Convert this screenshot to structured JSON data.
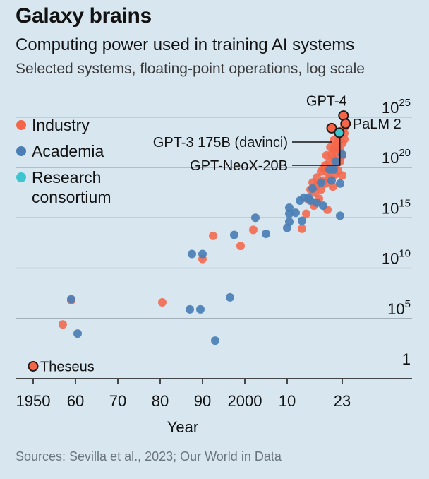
{
  "header": {
    "title": "Galaxy brains",
    "subtitle": "Computing power used in training AI systems",
    "description": "Selected systems, floating-point operations, log scale"
  },
  "footer": {
    "source": "Sources: Sevilla et al., 2023; Our World in Data"
  },
  "colors": {
    "industry": "#f4664a",
    "academia": "#4a7fb5",
    "research": "#3ec4cf",
    "outline": "#1e1e1e",
    "grid": "#9aa6b0",
    "background": "#d8e6f0"
  },
  "chart_data": {
    "type": "scatter",
    "y_scale": "log",
    "xlabel": "Year",
    "ylabel": "",
    "xlim": [
      1948,
      2031
    ],
    "ylim": [
      0,
      26.5
    ],
    "x_ticks": [
      {
        "value": 1950,
        "label": "1950"
      },
      {
        "value": 1960,
        "label": "60"
      },
      {
        "value": 1970,
        "label": "70"
      },
      {
        "value": 1980,
        "label": "80"
      },
      {
        "value": 1990,
        "label": "90"
      },
      {
        "value": 2000,
        "label": "2000"
      },
      {
        "value": 2010,
        "label": "10"
      },
      {
        "value": 2023,
        "label": "23"
      }
    ],
    "y_ticks": [
      {
        "exp": 0,
        "base": "1",
        "sup": ""
      },
      {
        "exp": 5,
        "base": "10",
        "sup": "5"
      },
      {
        "exp": 10,
        "base": "10",
        "sup": "10"
      },
      {
        "exp": 15,
        "base": "10",
        "sup": "15"
      },
      {
        "exp": 20,
        "base": "10",
        "sup": "20"
      },
      {
        "exp": 25,
        "base": "10",
        "sup": "25"
      }
    ],
    "legend": {
      "placement": "top-left",
      "entries": [
        {
          "key": "industry",
          "label_lines": [
            "Industry"
          ]
        },
        {
          "key": "academia",
          "label_lines": [
            "Academia"
          ]
        },
        {
          "key": "research",
          "label_lines": [
            "Research",
            "consortium"
          ]
        }
      ]
    },
    "series": [
      {
        "key": "industry",
        "points": [
          [
            1957,
            4.4
          ],
          [
            1959,
            6.8
          ],
          [
            1980.5,
            6.6
          ],
          [
            1990,
            10.9
          ],
          [
            1992.5,
            13.2
          ],
          [
            1999,
            12.2
          ],
          [
            2002,
            13.8
          ],
          [
            2013.5,
            13.9
          ],
          [
            2014.5,
            15.4
          ],
          [
            2015,
            16.8
          ],
          [
            2015.5,
            17.8
          ],
          [
            2016,
            18.5
          ],
          [
            2016.3,
            16.2
          ],
          [
            2016.5,
            17.5
          ],
          [
            2017,
            19.0
          ],
          [
            2017,
            18.2
          ],
          [
            2017.5,
            16.9
          ],
          [
            2018,
            19.6
          ],
          [
            2018,
            17.8
          ],
          [
            2018.5,
            18.7
          ],
          [
            2018.5,
            19.9
          ],
          [
            2019,
            20.2
          ],
          [
            2019,
            18.4
          ],
          [
            2019.3,
            21.2
          ],
          [
            2019.5,
            15.8
          ],
          [
            2019.5,
            19.5
          ],
          [
            2020,
            20.5
          ],
          [
            2020,
            18.9
          ],
          [
            2020.2,
            22.0
          ],
          [
            2020.5,
            21.3
          ],
          [
            2020.5,
            19.9
          ],
          [
            2020.8,
            18.1
          ],
          [
            2021,
            20.8
          ],
          [
            2021,
            21.8
          ],
          [
            2021,
            22.7
          ],
          [
            2021.3,
            19.3
          ],
          [
            2021.5,
            20.3
          ],
          [
            2021.5,
            21.5
          ],
          [
            2021.5,
            22.2
          ],
          [
            2022,
            22.5
          ],
          [
            2022,
            21.9
          ],
          [
            2022,
            20.9
          ],
          [
            2022,
            19.7
          ],
          [
            2022.3,
            23.0
          ],
          [
            2022.5,
            21.7
          ],
          [
            2022.5,
            20.6
          ],
          [
            2022.5,
            23.3
          ],
          [
            2023,
            22.4
          ],
          [
            2023,
            21.2
          ],
          [
            2023,
            19.2
          ],
          [
            2023.3,
            23.8
          ],
          [
            2023.5,
            23.4
          ],
          [
            2023.5,
            22.8
          ],
          [
            2023.8,
            24.1
          ]
        ]
      },
      {
        "key": "academia",
        "points": [
          [
            1959,
            6.9
          ],
          [
            1960.5,
            3.5
          ],
          [
            1987,
            5.9
          ],
          [
            1987.5,
            11.4
          ],
          [
            1989.5,
            5.9
          ],
          [
            1990,
            11.4
          ],
          [
            1993,
            2.8
          ],
          [
            1996.5,
            7.1
          ],
          [
            1997.5,
            13.3
          ],
          [
            2002.5,
            15.0
          ],
          [
            2005,
            13.4
          ],
          [
            2010,
            14.0
          ],
          [
            2010.5,
            14.6
          ],
          [
            2010.5,
            16.0
          ],
          [
            2010.5,
            15.4
          ],
          [
            2012,
            15.5
          ],
          [
            2013,
            16.7
          ],
          [
            2013.5,
            14.7
          ],
          [
            2014,
            17.0
          ],
          [
            2015,
            17.0
          ],
          [
            2015.5,
            16.7
          ],
          [
            2016,
            17.9
          ],
          [
            2017,
            16.5
          ],
          [
            2018,
            18.5
          ],
          [
            2018.5,
            16.2
          ],
          [
            2020,
            19.8
          ],
          [
            2020.5,
            18.7
          ],
          [
            2021,
            19.8
          ],
          [
            2021.5,
            20.6
          ],
          [
            2022.5,
            18.4
          ],
          [
            2022.5,
            15.2
          ],
          [
            2023,
            21.3
          ]
        ]
      }
    ],
    "annotations": [
      {
        "label": "Theseus",
        "key": "industry",
        "x": 1950,
        "y": 0.25,
        "side": "right"
      },
      {
        "label": "GPT-4",
        "key": "industry",
        "x": 2023.3,
        "y": 25.15,
        "side": "above"
      },
      {
        "label": "PaLM 2",
        "key": "industry",
        "x": 2023.8,
        "y": 24.35,
        "side": "right"
      },
      {
        "label": "GPT-3 175B (davinci)",
        "key": "industry",
        "x": 2020.5,
        "y": 23.9,
        "side": "left"
      },
      {
        "label": "GPT-NeoX-20B",
        "key": "research",
        "x": 2022.3,
        "y": 23.45,
        "side": "left"
      }
    ]
  }
}
